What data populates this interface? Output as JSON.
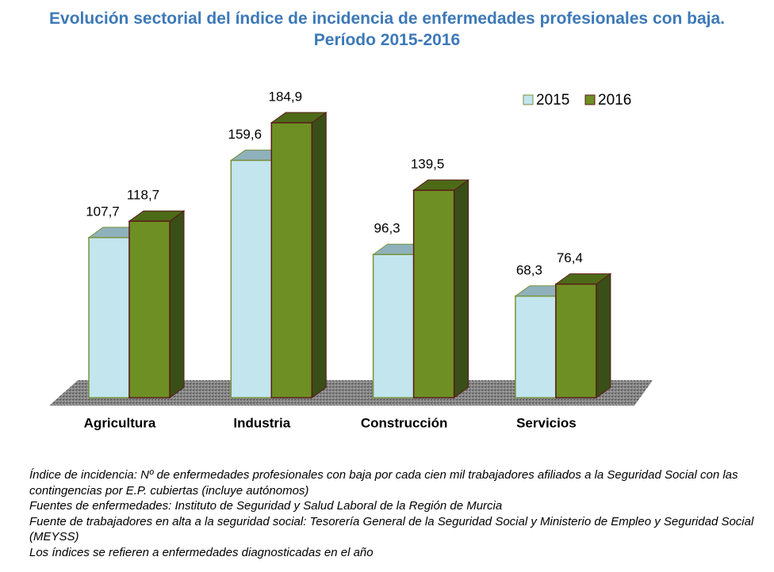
{
  "chart_data": {
    "type": "bar3d",
    "title": "Evolución sectorial del índice de incidencia de enfermedades profesionales con baja. Período 2015-2016",
    "categories": [
      "Agricultura",
      "Industria",
      "Construcción",
      "Servicios"
    ],
    "series": [
      {
        "name": "2015",
        "color": "#c2e5ee",
        "values": [
          107.7,
          159.6,
          96.3,
          68.3
        ],
        "value_labels": [
          "107,7",
          "159,6",
          "96,3",
          "68,3"
        ]
      },
      {
        "name": "2016",
        "color": "#6e8f23",
        "values": [
          118.7,
          184.9,
          139.5,
          76.4
        ],
        "value_labels": [
          "118,7",
          "184,9",
          "139,5",
          "76,4"
        ]
      }
    ],
    "legend": "top-right",
    "notes": [
      "Índice de incidencia: Nº de enfermedades profesionales con baja por cada cien mil trabajadores afiliados a la Seguridad Social con las contingencias por E.P. cubiertas (incluye autónomos)",
      "Fuentes de enfermedades: Instituto de Seguridad y Salud Laboral de la Región de Murcia",
      "Fuente de trabajadores en alta a la seguridad social: Tesorería General de la Seguridad Social y Ministerio de Empleo y Seguridad Social (MEYSS)",
      "Los índices se refieren a enfermedades diagnosticadas en el año"
    ]
  }
}
